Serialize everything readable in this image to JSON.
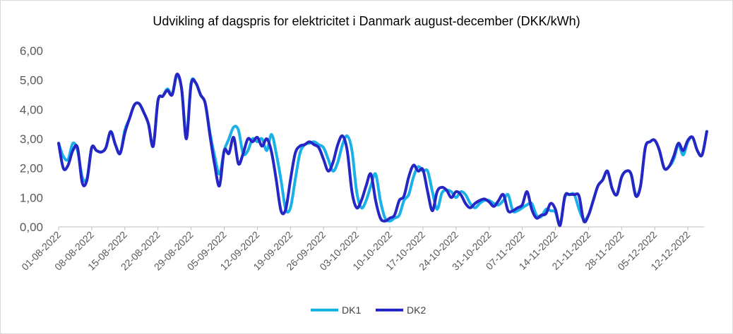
{
  "chart_data": {
    "type": "line",
    "title": "Udvikling af dagspris for elektricitet i Danmark august-december (DKK/kWh)",
    "xlabel": "",
    "ylabel": "",
    "ylim": [
      0,
      6
    ],
    "y_ticks": [
      "0,00",
      "1,00",
      "2,00",
      "3,00",
      "4,00",
      "5,00",
      "6,00"
    ],
    "x_tick_labels": [
      "01-08-2022",
      "08-08-2022",
      "15-08-2022",
      "22-08-2022",
      "29-08-2022",
      "05-09-2022",
      "12-09-2022",
      "19-09-2022",
      "26-09-2022",
      "03-10-2022",
      "10-10-2022",
      "17-10-2022",
      "24-10-2022",
      "31-10-2022",
      "07-11-2022",
      "14-11-2022",
      "21-11-2022",
      "28-11-2022",
      "05-12-2022",
      "12-12-2022"
    ],
    "x_start": "2022-08-01",
    "x_end": "2022-12-13",
    "grid": false,
    "legend_position": "bottom",
    "series": [
      {
        "name": "DK1",
        "color": "#1ab0e8",
        "points": [
          [
            "2022-08-01",
            2.85
          ],
          [
            "2022-08-02",
            2.4
          ],
          [
            "2022-08-03",
            2.3
          ],
          [
            "2022-08-04",
            2.85
          ],
          [
            "2022-08-05",
            2.6
          ],
          [
            "2022-08-06",
            1.7
          ],
          [
            "2022-08-07",
            1.65
          ],
          [
            "2022-08-08",
            2.7
          ],
          [
            "2022-08-09",
            2.6
          ],
          [
            "2022-08-10",
            2.55
          ],
          [
            "2022-08-11",
            2.7
          ],
          [
            "2022-08-12",
            3.25
          ],
          [
            "2022-08-13",
            2.8
          ],
          [
            "2022-08-14",
            2.5
          ],
          [
            "2022-08-15",
            3.3
          ],
          [
            "2022-08-16",
            3.7
          ],
          [
            "2022-08-17",
            4.15
          ],
          [
            "2022-08-18",
            4.2
          ],
          [
            "2022-08-19",
            3.9
          ],
          [
            "2022-08-20",
            3.5
          ],
          [
            "2022-08-21",
            2.75
          ],
          [
            "2022-08-22",
            4.3
          ],
          [
            "2022-08-23",
            4.45
          ],
          [
            "2022-08-24",
            4.7
          ],
          [
            "2022-08-25",
            4.5
          ],
          [
            "2022-08-26",
            5.15
          ],
          [
            "2022-08-27",
            4.7
          ],
          [
            "2022-08-28",
            3.1
          ],
          [
            "2022-08-29",
            4.9
          ],
          [
            "2022-08-30",
            4.9
          ],
          [
            "2022-08-31",
            4.5
          ],
          [
            "2022-09-01",
            4.2
          ],
          [
            "2022-09-02",
            3.2
          ],
          [
            "2022-09-03",
            2.4
          ],
          [
            "2022-09-04",
            1.8
          ],
          [
            "2022-09-05",
            2.6
          ],
          [
            "2022-09-06",
            3.0
          ],
          [
            "2022-09-07",
            3.4
          ],
          [
            "2022-09-08",
            3.3
          ],
          [
            "2022-09-09",
            2.5
          ],
          [
            "2022-09-10",
            2.6
          ],
          [
            "2022-09-11",
            3.0
          ],
          [
            "2022-09-12",
            2.9
          ],
          [
            "2022-09-13",
            3.0
          ],
          [
            "2022-09-14",
            2.6
          ],
          [
            "2022-09-15",
            3.15
          ],
          [
            "2022-09-16",
            2.5
          ],
          [
            "2022-09-17",
            1.6
          ],
          [
            "2022-09-18",
            0.6
          ],
          [
            "2022-09-19",
            0.65
          ],
          [
            "2022-09-20",
            1.6
          ],
          [
            "2022-09-21",
            2.5
          ],
          [
            "2022-09-22",
            2.8
          ],
          [
            "2022-09-23",
            2.85
          ],
          [
            "2022-09-24",
            2.9
          ],
          [
            "2022-09-25",
            2.8
          ],
          [
            "2022-09-26",
            2.7
          ],
          [
            "2022-09-27",
            2.3
          ],
          [
            "2022-09-28",
            1.9
          ],
          [
            "2022-09-29",
            2.2
          ],
          [
            "2022-09-30",
            2.8
          ],
          [
            "2022-10-01",
            3.1
          ],
          [
            "2022-10-02",
            2.6
          ],
          [
            "2022-10-03",
            1.2
          ],
          [
            "2022-10-04",
            0.65
          ],
          [
            "2022-10-05",
            0.9
          ],
          [
            "2022-10-06",
            1.4
          ],
          [
            "2022-10-07",
            1.8
          ],
          [
            "2022-10-08",
            0.9
          ],
          [
            "2022-10-09",
            0.3
          ],
          [
            "2022-10-10",
            0.2
          ],
          [
            "2022-10-11",
            0.3
          ],
          [
            "2022-10-12",
            0.4
          ],
          [
            "2022-10-13",
            0.9
          ],
          [
            "2022-10-14",
            1.1
          ],
          [
            "2022-10-15",
            1.7
          ],
          [
            "2022-10-16",
            2.05
          ],
          [
            "2022-10-17",
            1.9
          ],
          [
            "2022-10-18",
            1.9
          ],
          [
            "2022-10-19",
            1.2
          ],
          [
            "2022-10-20",
            0.6
          ],
          [
            "2022-10-21",
            1.15
          ],
          [
            "2022-10-22",
            1.25
          ],
          [
            "2022-10-23",
            1.2
          ],
          [
            "2022-10-24",
            1.0
          ],
          [
            "2022-10-25",
            1.2
          ],
          [
            "2022-10-26",
            1.1
          ],
          [
            "2022-10-27",
            0.8
          ],
          [
            "2022-10-28",
            0.65
          ],
          [
            "2022-10-29",
            0.8
          ],
          [
            "2022-10-30",
            0.9
          ],
          [
            "2022-10-31",
            0.9
          ],
          [
            "2022-11-01",
            0.8
          ],
          [
            "2022-11-02",
            0.75
          ],
          [
            "2022-11-03",
            0.9
          ],
          [
            "2022-11-04",
            1.1
          ],
          [
            "2022-11-05",
            0.55
          ],
          [
            "2022-11-06",
            0.55
          ],
          [
            "2022-11-07",
            0.65
          ],
          [
            "2022-11-08",
            0.75
          ],
          [
            "2022-11-09",
            0.8
          ],
          [
            "2022-11-10",
            0.4
          ],
          [
            "2022-11-11",
            0.35
          ],
          [
            "2022-11-12",
            0.6
          ],
          [
            "2022-11-13",
            0.55
          ],
          [
            "2022-11-14",
            0.5
          ],
          [
            "2022-11-15",
            0.1
          ],
          [
            "2022-11-16",
            1.0
          ],
          [
            "2022-11-17",
            1.1
          ],
          [
            "2022-11-18",
            1.1
          ],
          [
            "2022-11-19",
            0.6
          ],
          [
            "2022-11-20",
            0.25
          ],
          [
            "2022-11-21",
            0.4
          ],
          [
            "2022-11-22",
            0.9
          ],
          [
            "2022-11-23",
            1.4
          ],
          [
            "2022-11-24",
            1.6
          ],
          [
            "2022-11-25",
            1.9
          ],
          [
            "2022-11-26",
            1.3
          ],
          [
            "2022-11-27",
            1.1
          ],
          [
            "2022-11-28",
            1.7
          ],
          [
            "2022-11-29",
            1.9
          ],
          [
            "2022-11-30",
            1.8
          ],
          [
            "2022-12-01",
            1.1
          ],
          [
            "2022-12-02",
            1.4
          ],
          [
            "2022-12-03",
            2.7
          ],
          [
            "2022-12-04",
            2.9
          ],
          [
            "2022-12-05",
            2.95
          ],
          [
            "2022-12-06",
            2.6
          ],
          [
            "2022-12-07",
            2.0
          ],
          [
            "2022-12-08",
            2.05
          ],
          [
            "2022-12-09",
            2.3
          ],
          [
            "2022-12-10",
            2.8
          ],
          [
            "2022-12-11",
            2.45
          ],
          [
            "2022-12-12",
            2.9
          ],
          [
            "2022-12-13",
            3.05
          ],
          [
            "2022-12-14",
            2.6
          ],
          [
            "2022-12-15",
            2.45
          ],
          [
            "2022-12-16",
            3.25
          ]
        ]
      },
      {
        "name": "DK2",
        "color": "#2626c4",
        "points": [
          [
            "2022-08-01",
            2.85
          ],
          [
            "2022-08-02",
            2.0
          ],
          [
            "2022-08-03",
            2.1
          ],
          [
            "2022-08-04",
            2.6
          ],
          [
            "2022-08-05",
            2.7
          ],
          [
            "2022-08-06",
            1.5
          ],
          [
            "2022-08-07",
            1.6
          ],
          [
            "2022-08-08",
            2.7
          ],
          [
            "2022-08-09",
            2.6
          ],
          [
            "2022-08-10",
            2.55
          ],
          [
            "2022-08-11",
            2.7
          ],
          [
            "2022-08-12",
            3.25
          ],
          [
            "2022-08-13",
            2.8
          ],
          [
            "2022-08-14",
            2.5
          ],
          [
            "2022-08-15",
            3.2
          ],
          [
            "2022-08-16",
            3.7
          ],
          [
            "2022-08-17",
            4.15
          ],
          [
            "2022-08-18",
            4.2
          ],
          [
            "2022-08-19",
            3.9
          ],
          [
            "2022-08-20",
            3.5
          ],
          [
            "2022-08-21",
            2.75
          ],
          [
            "2022-08-22",
            4.3
          ],
          [
            "2022-08-23",
            4.45
          ],
          [
            "2022-08-24",
            4.65
          ],
          [
            "2022-08-25",
            4.5
          ],
          [
            "2022-08-26",
            5.2
          ],
          [
            "2022-08-27",
            4.7
          ],
          [
            "2022-08-28",
            3.0
          ],
          [
            "2022-08-29",
            4.85
          ],
          [
            "2022-08-30",
            4.9
          ],
          [
            "2022-08-31",
            4.5
          ],
          [
            "2022-09-01",
            4.2
          ],
          [
            "2022-09-02",
            3.1
          ],
          [
            "2022-09-03",
            2.1
          ],
          [
            "2022-09-04",
            1.4
          ],
          [
            "2022-09-05",
            2.6
          ],
          [
            "2022-09-06",
            2.5
          ],
          [
            "2022-09-07",
            3.05
          ],
          [
            "2022-09-08",
            2.15
          ],
          [
            "2022-09-09",
            2.5
          ],
          [
            "2022-09-10",
            3.0
          ],
          [
            "2022-09-11",
            2.9
          ],
          [
            "2022-09-12",
            3.05
          ],
          [
            "2022-09-13",
            2.75
          ],
          [
            "2022-09-14",
            3.0
          ],
          [
            "2022-09-15",
            2.55
          ],
          [
            "2022-09-16",
            1.6
          ],
          [
            "2022-09-17",
            0.55
          ],
          [
            "2022-09-18",
            0.6
          ],
          [
            "2022-09-19",
            1.6
          ],
          [
            "2022-09-20",
            2.5
          ],
          [
            "2022-09-21",
            2.75
          ],
          [
            "2022-09-22",
            2.8
          ],
          [
            "2022-09-23",
            2.9
          ],
          [
            "2022-09-24",
            2.8
          ],
          [
            "2022-09-25",
            2.7
          ],
          [
            "2022-09-26",
            2.3
          ],
          [
            "2022-09-27",
            1.9
          ],
          [
            "2022-09-28",
            2.2
          ],
          [
            "2022-09-29",
            2.8
          ],
          [
            "2022-09-30",
            3.1
          ],
          [
            "2022-10-01",
            2.6
          ],
          [
            "2022-10-02",
            1.2
          ],
          [
            "2022-10-03",
            0.65
          ],
          [
            "2022-10-04",
            0.9
          ],
          [
            "2022-10-05",
            1.4
          ],
          [
            "2022-10-06",
            1.8
          ],
          [
            "2022-10-07",
            0.9
          ],
          [
            "2022-10-08",
            0.3
          ],
          [
            "2022-10-09",
            0.2
          ],
          [
            "2022-10-10",
            0.3
          ],
          [
            "2022-10-11",
            0.4
          ],
          [
            "2022-10-12",
            0.9
          ],
          [
            "2022-10-13",
            1.05
          ],
          [
            "2022-10-14",
            1.7
          ],
          [
            "2022-10-15",
            2.1
          ],
          [
            "2022-10-16",
            1.9
          ],
          [
            "2022-10-17",
            1.95
          ],
          [
            "2022-10-18",
            1.2
          ],
          [
            "2022-10-19",
            0.55
          ],
          [
            "2022-10-20",
            1.2
          ],
          [
            "2022-10-21",
            1.35
          ],
          [
            "2022-10-22",
            1.25
          ],
          [
            "2022-10-23",
            1.0
          ],
          [
            "2022-10-24",
            1.2
          ],
          [
            "2022-10-25",
            1.1
          ],
          [
            "2022-10-26",
            0.8
          ],
          [
            "2022-10-27",
            0.65
          ],
          [
            "2022-10-28",
            0.8
          ],
          [
            "2022-10-29",
            0.9
          ],
          [
            "2022-10-30",
            0.95
          ],
          [
            "2022-10-31",
            0.85
          ],
          [
            "2022-11-01",
            0.7
          ],
          [
            "2022-11-02",
            0.9
          ],
          [
            "2022-11-03",
            1.1
          ],
          [
            "2022-11-04",
            0.55
          ],
          [
            "2022-11-05",
            0.55
          ],
          [
            "2022-11-06",
            0.65
          ],
          [
            "2022-11-07",
            0.75
          ],
          [
            "2022-11-08",
            1.2
          ],
          [
            "2022-11-09",
            0.6
          ],
          [
            "2022-11-10",
            0.3
          ],
          [
            "2022-11-11",
            0.4
          ],
          [
            "2022-11-12",
            0.45
          ],
          [
            "2022-11-13",
            0.8
          ],
          [
            "2022-11-14",
            0.6
          ],
          [
            "2022-11-15",
            0.05
          ],
          [
            "2022-11-16",
            1.05
          ],
          [
            "2022-11-17",
            1.1
          ],
          [
            "2022-11-18",
            1.1
          ],
          [
            "2022-11-19",
            1.05
          ],
          [
            "2022-11-20",
            0.2
          ],
          [
            "2022-11-21",
            0.4
          ],
          [
            "2022-11-22",
            0.9
          ],
          [
            "2022-11-23",
            1.4
          ],
          [
            "2022-11-24",
            1.6
          ],
          [
            "2022-11-25",
            1.9
          ],
          [
            "2022-11-26",
            1.3
          ],
          [
            "2022-11-27",
            1.1
          ],
          [
            "2022-11-28",
            1.7
          ],
          [
            "2022-11-29",
            1.9
          ],
          [
            "2022-11-30",
            1.8
          ],
          [
            "2022-12-01",
            1.05
          ],
          [
            "2022-12-02",
            1.4
          ],
          [
            "2022-12-03",
            2.7
          ],
          [
            "2022-12-04",
            2.9
          ],
          [
            "2022-12-05",
            2.95
          ],
          [
            "2022-12-06",
            2.6
          ],
          [
            "2022-12-07",
            2.0
          ],
          [
            "2022-12-08",
            2.05
          ],
          [
            "2022-12-09",
            2.4
          ],
          [
            "2022-12-10",
            2.85
          ],
          [
            "2022-12-11",
            2.6
          ],
          [
            "2022-12-12",
            2.95
          ],
          [
            "2022-12-13",
            3.05
          ],
          [
            "2022-12-14",
            2.6
          ],
          [
            "2022-12-15",
            2.45
          ],
          [
            "2022-12-16",
            3.25
          ]
        ]
      }
    ]
  }
}
